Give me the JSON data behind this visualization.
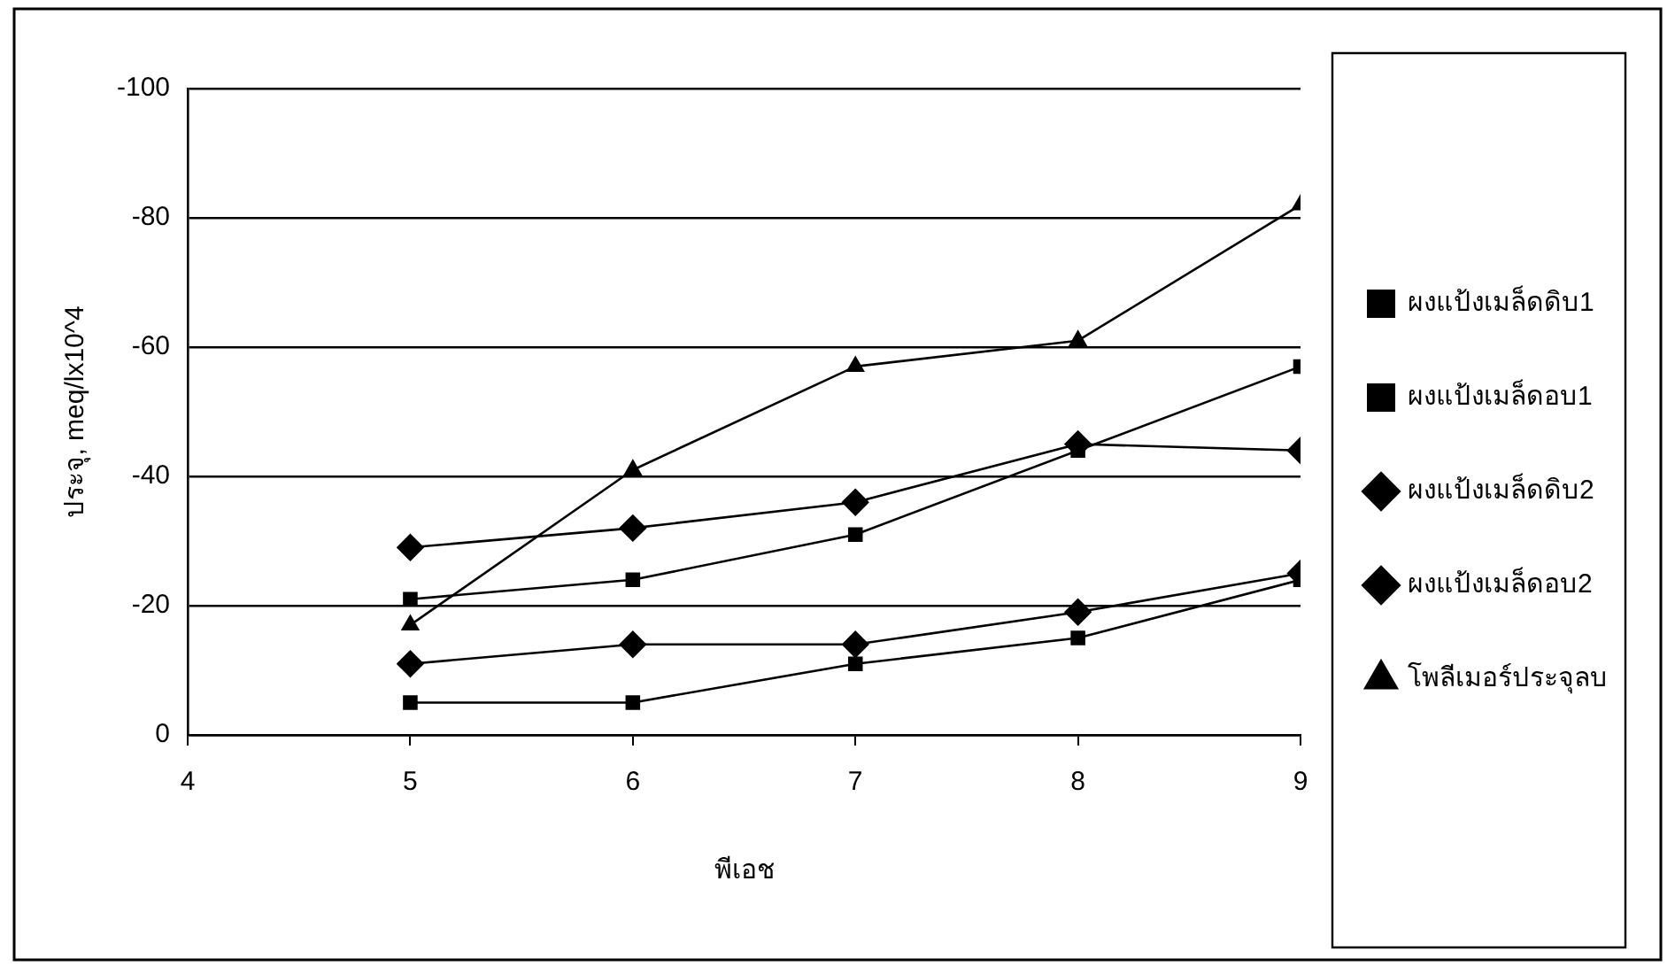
{
  "chart_data": {
    "type": "line",
    "xlabel": "พีเอช",
    "ylabel": "ประจุ, meq/lx10^4",
    "x": [
      5,
      6,
      7,
      8,
      9
    ],
    "series": [
      {
        "name": "ผงแป้งเมล็ดดิบ1",
        "color": "#000000",
        "marker": "square",
        "values": [
          -21,
          -24,
          -31,
          -44,
          -57
        ]
      },
      {
        "name": "ผงแป้งเมล็ดอบ1",
        "color": "#000000",
        "marker": "square",
        "values": [
          -5,
          -5,
          -11,
          -15,
          -24
        ]
      },
      {
        "name": "ผงแป้งเมล็ดดิบ2",
        "color": "#000000",
        "marker": "diamond",
        "values": [
          -29,
          -32,
          -36,
          -45,
          -44
        ]
      },
      {
        "name": "ผงแป้งเมล็ดอบ2",
        "color": "#000000",
        "marker": "diamond",
        "values": [
          -11,
          -14,
          -14,
          -19,
          -25
        ]
      },
      {
        "name": "โพลีเมอร์ประจุลบ",
        "color": "#000000",
        "marker": "triangle",
        "values": [
          -17,
          -41,
          -57,
          -61,
          -82
        ]
      }
    ],
    "xlim": [
      4,
      9
    ],
    "xticks": [
      4,
      5,
      6,
      7,
      8,
      9
    ],
    "ylim": [
      0,
      -100
    ],
    "yticks": [
      0,
      -20,
      -40,
      -60,
      -80,
      -100
    ],
    "grid": "y",
    "legend": "right",
    "line_style": "solid"
  }
}
